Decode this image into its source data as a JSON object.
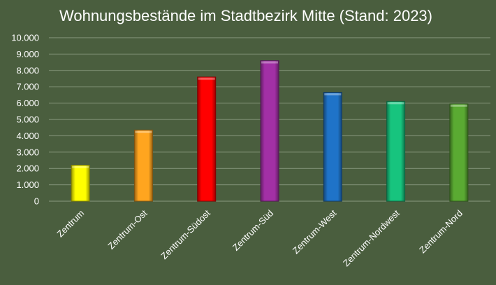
{
  "chart_data": {
    "type": "bar",
    "title": "Wohnungsbestände im Stadtbezirk Mitte (Stand: 2023)",
    "xlabel": "",
    "ylabel": "",
    "categories": [
      "Zentrum",
      "Zentrum-Ost",
      "Zentrum-Südost",
      "Zentrum-Süd",
      "Zentrum-West",
      "Zentrum-Nordwest",
      "Zentrum-Nord"
    ],
    "values": [
      2200,
      4350,
      7600,
      8600,
      6650,
      6100,
      5950
    ],
    "bar_colors": [
      "#ffff00",
      "#ffa51f",
      "#ff0000",
      "#a230a5",
      "#1f73c8",
      "#17c47e",
      "#5aaa32"
    ],
    "ylim": [
      0,
      10000
    ],
    "yticks": [
      "0",
      "1.000",
      "2.000",
      "3.000",
      "4.000",
      "5.000",
      "6.000",
      "7.000",
      "8.000",
      "9.000",
      "10.000"
    ],
    "ytick_values": [
      0,
      1000,
      2000,
      3000,
      4000,
      5000,
      6000,
      7000,
      8000,
      9000,
      10000
    ],
    "grid": true,
    "legend": "none",
    "background_color": "#4a5e3e",
    "gridline_color": "#8a9a80",
    "text_color": "#ffffff"
  }
}
